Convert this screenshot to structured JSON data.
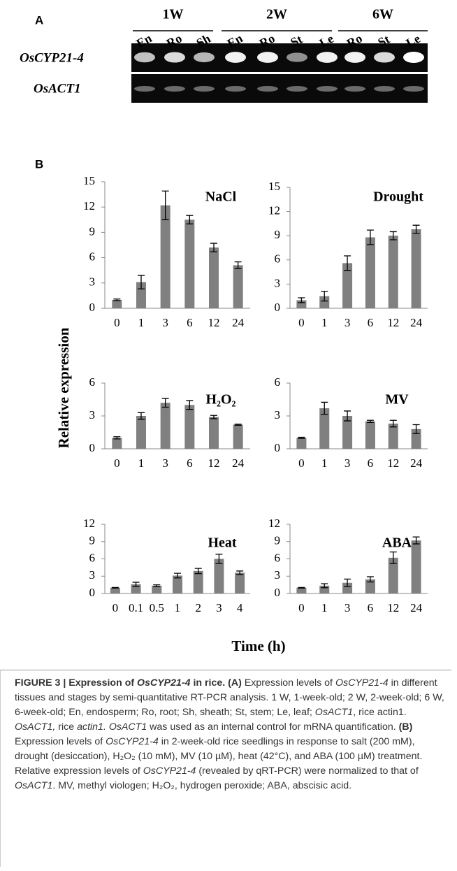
{
  "panel_a": {
    "label": "A",
    "groups": [
      {
        "label": "1W",
        "lanes": [
          "En",
          "Ro",
          "Sh"
        ]
      },
      {
        "label": "2W",
        "lanes": [
          "En",
          "Ro",
          "St",
          "Le"
        ]
      },
      {
        "label": "6W",
        "lanes": [
          "Ro",
          "St",
          "Le"
        ]
      }
    ],
    "rows": [
      "OsCYP21-4",
      "OsACT1"
    ]
  },
  "panel_b": {
    "label": "B",
    "y_label": "Relative expression",
    "x_label": "Time (h)"
  },
  "chart_data": [
    {
      "type": "bar",
      "title": "NaCl",
      "categories": [
        "0",
        "1",
        "3",
        "6",
        "12",
        "24"
      ],
      "values": [
        1,
        3.1,
        12.2,
        10.5,
        7.2,
        5.1
      ],
      "errors": [
        0.1,
        0.8,
        1.7,
        0.5,
        0.5,
        0.4
      ],
      "ylim": [
        0,
        15
      ],
      "yticks": [
        0,
        3,
        6,
        9,
        12,
        15
      ],
      "color": "#808080"
    },
    {
      "type": "bar",
      "title": "Drought",
      "categories": [
        "0",
        "1",
        "3",
        "6",
        "12",
        "24"
      ],
      "values": [
        1,
        1.5,
        5.6,
        8.8,
        9,
        9.8
      ],
      "errors": [
        0.3,
        0.6,
        0.9,
        0.9,
        0.5,
        0.5
      ],
      "ylim": [
        0,
        15
      ],
      "yticks": [
        0,
        3,
        6,
        9,
        12,
        15
      ],
      "color": "#808080"
    },
    {
      "type": "bar",
      "title": "H₂O₂",
      "categories": [
        "0",
        "1",
        "3",
        "6",
        "12",
        "24"
      ],
      "values": [
        1,
        3,
        4.2,
        4,
        2.9,
        2.2
      ],
      "errors": [
        0.1,
        0.3,
        0.4,
        0.4,
        0.15,
        0.05
      ],
      "ylim": [
        0,
        6
      ],
      "yticks": [
        0,
        3,
        6
      ],
      "color": "#808080"
    },
    {
      "type": "bar",
      "title": "MV",
      "categories": [
        "0",
        "1",
        "3",
        "6",
        "12",
        "24"
      ],
      "values": [
        1,
        3.7,
        3,
        2.5,
        2.3,
        1.8
      ],
      "errors": [
        0.05,
        0.55,
        0.45,
        0.1,
        0.3,
        0.4
      ],
      "ylim": [
        0,
        6
      ],
      "yticks": [
        0,
        3,
        6
      ],
      "color": "#808080"
    },
    {
      "type": "bar",
      "title": "Heat",
      "categories": [
        "0",
        "0.1",
        "0.5",
        "1",
        "2",
        "3",
        "4"
      ],
      "values": [
        1,
        1.6,
        1.35,
        3.1,
        3.9,
        6,
        3.6
      ],
      "errors": [
        0.05,
        0.35,
        0.15,
        0.4,
        0.45,
        0.8,
        0.3
      ],
      "ylim": [
        0,
        12
      ],
      "yticks": [
        0,
        3,
        6,
        9,
        12
      ],
      "color": "#808080"
    },
    {
      "type": "bar",
      "title": "ABA",
      "categories": [
        "0",
        "1",
        "3",
        "6",
        "12",
        "24"
      ],
      "values": [
        1,
        1.35,
        1.85,
        2.45,
        6.2,
        9.2
      ],
      "errors": [
        0.05,
        0.35,
        0.65,
        0.45,
        1,
        0.6
      ],
      "ylim": [
        0,
        12
      ],
      "yticks": [
        0,
        3,
        6,
        9,
        12
      ],
      "color": "#808080"
    }
  ],
  "caption": {
    "parts": [
      "FIGURE 3 | Expression of ",
      "OsCYP21-4",
      " in rice. ",
      "(A)",
      " Expression levels of ",
      "OsCYP21-4",
      " in different tissues and stages by semi-quantitative RT-PCR analysis. 1 W, 1-week-old; 2 W, 2-week-old; 6 W, 6-week-old; En, endosperm; Ro, root; Sh, sheath; St, stem; Le, leaf; ",
      "OsACT1",
      ", rice actin1. ",
      "OsACT1,",
      " rice ",
      "actin1. OsACT1",
      " was used as an internal control for mRNA quantification. ",
      "(B)",
      " Expression levels of ",
      "OsCYP21-4",
      " in 2-week-old rice seedlings in response to salt (200 mM), drought (desiccation), H₂O₂ (10 mM), MV (10 µM), heat (42°C), and ABA (100 µM) treatment. Relative expression levels of ",
      "OsCYP21-4",
      " (revealed by qRT-PCR) were normalized to that of ",
      "OsACT1",
      ". MV, methyl viologen; H₂O₂, hydrogen peroxide; ABA, abscisic acid."
    ]
  }
}
